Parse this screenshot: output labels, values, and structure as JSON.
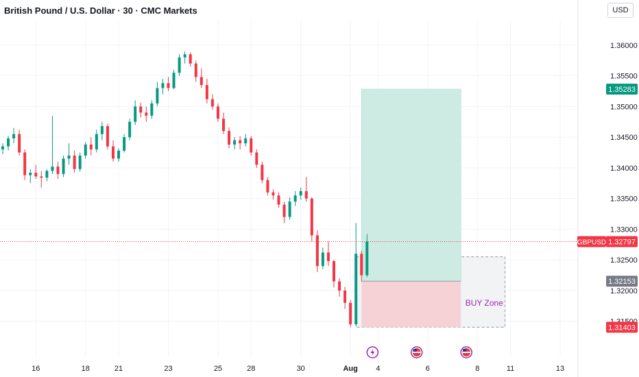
{
  "header": {
    "title": "British Pound / U.S. Dollar · 30 · CMC Markets",
    "currency_button": "USD"
  },
  "chart_data": {
    "type": "candlestick",
    "symbol": "GBPUSD",
    "ylim": [
      1.3115,
      1.364
    ],
    "y_ticks": [
      {
        "value": 1.36,
        "label": "1.36000"
      },
      {
        "value": 1.355,
        "label": "1.35500"
      },
      {
        "value": 1.35,
        "label": "1.35000"
      },
      {
        "value": 1.345,
        "label": "1.34500"
      },
      {
        "value": 1.34,
        "label": "1.34000"
      },
      {
        "value": 1.335,
        "label": "1.33500"
      },
      {
        "value": 1.33,
        "label": "1.33000"
      },
      {
        "value": 1.325,
        "label": "1.32500"
      },
      {
        "value": 1.32,
        "label": "1.32000"
      },
      {
        "value": 1.315,
        "label": "1.31500"
      }
    ],
    "x_ticks": [
      {
        "label": "16",
        "index": 6
      },
      {
        "label": "18",
        "index": 15
      },
      {
        "label": "21",
        "index": 21
      },
      {
        "label": "23",
        "index": 30
      },
      {
        "label": "25",
        "index": 39
      },
      {
        "label": "28",
        "index": 45
      },
      {
        "label": "30",
        "index": 54
      },
      {
        "label": "Aug",
        "index": 63,
        "bold": true
      },
      {
        "label": "4",
        "index": 68
      },
      {
        "label": "6",
        "index": 77
      },
      {
        "label": "8",
        "index": 86
      },
      {
        "label": "11",
        "index": 92
      },
      {
        "label": "13",
        "index": 101
      }
    ],
    "x_count": 113,
    "candles": [
      [
        1.343,
        1.344,
        1.3422,
        1.3435
      ],
      [
        1.3435,
        1.3452,
        1.3428,
        1.3448
      ],
      [
        1.3448,
        1.3465,
        1.344,
        1.3455
      ],
      [
        1.3455,
        1.3462,
        1.342,
        1.3425
      ],
      [
        1.3425,
        1.343,
        1.338,
        1.3388
      ],
      [
        1.3388,
        1.3398,
        1.3375,
        1.3392
      ],
      [
        1.3392,
        1.3405,
        1.3382,
        1.3386
      ],
      [
        1.3386,
        1.3395,
        1.3368,
        1.3384
      ],
      [
        1.3384,
        1.3398,
        1.3378,
        1.3395
      ],
      [
        1.3395,
        1.3485,
        1.339,
        1.3402
      ],
      [
        1.3402,
        1.341,
        1.3382,
        1.339
      ],
      [
        1.339,
        1.342,
        1.3385,
        1.3415
      ],
      [
        1.3415,
        1.344,
        1.3405,
        1.342
      ],
      [
        1.342,
        1.3428,
        1.3392,
        1.3398
      ],
      [
        1.3398,
        1.3425,
        1.3394,
        1.342
      ],
      [
        1.342,
        1.3442,
        1.3415,
        1.3438
      ],
      [
        1.3438,
        1.345,
        1.342,
        1.343
      ],
      [
        1.343,
        1.3462,
        1.3425,
        1.3455
      ],
      [
        1.3455,
        1.3475,
        1.3445,
        1.3468
      ],
      [
        1.3468,
        1.3472,
        1.343,
        1.3435
      ],
      [
        1.3435,
        1.3445,
        1.341,
        1.3415
      ],
      [
        1.3415,
        1.3432,
        1.341,
        1.3428
      ],
      [
        1.3428,
        1.3455,
        1.3425,
        1.345
      ],
      [
        1.345,
        1.348,
        1.3445,
        1.3475
      ],
      [
        1.3475,
        1.351,
        1.347,
        1.35
      ],
      [
        1.35,
        1.3506,
        1.3482,
        1.349
      ],
      [
        1.349,
        1.35,
        1.3475,
        1.3485
      ],
      [
        1.3485,
        1.351,
        1.348,
        1.3505
      ],
      [
        1.3505,
        1.354,
        1.35,
        1.353
      ],
      [
        1.353,
        1.3545,
        1.352,
        1.3538
      ],
      [
        1.3538,
        1.3548,
        1.3525,
        1.353
      ],
      [
        1.353,
        1.356,
        1.3528,
        1.3555
      ],
      [
        1.3555,
        1.3585,
        1.355,
        1.358
      ],
      [
        1.358,
        1.359,
        1.357,
        1.3585
      ],
      [
        1.3585,
        1.3588,
        1.3565,
        1.357
      ],
      [
        1.357,
        1.3575,
        1.354,
        1.3548
      ],
      [
        1.3548,
        1.3562,
        1.353,
        1.3535
      ],
      [
        1.3535,
        1.3545,
        1.3505,
        1.3512
      ],
      [
        1.3512,
        1.352,
        1.3495,
        1.35
      ],
      [
        1.35,
        1.3505,
        1.3475,
        1.348
      ],
      [
        1.348,
        1.349,
        1.3455,
        1.346
      ],
      [
        1.346,
        1.3466,
        1.3432,
        1.3438
      ],
      [
        1.3438,
        1.345,
        1.343,
        1.3445
      ],
      [
        1.3445,
        1.3452,
        1.343,
        1.344
      ],
      [
        1.344,
        1.3455,
        1.3435,
        1.3448
      ],
      [
        1.3448,
        1.3452,
        1.342,
        1.3425
      ],
      [
        1.3425,
        1.343,
        1.34,
        1.3405
      ],
      [
        1.3405,
        1.341,
        1.3375,
        1.338
      ],
      [
        1.338,
        1.3385,
        1.3355,
        1.336
      ],
      [
        1.336,
        1.3365,
        1.3348,
        1.3355
      ],
      [
        1.3355,
        1.336,
        1.3335,
        1.334
      ],
      [
        1.334,
        1.3345,
        1.331,
        1.332
      ],
      [
        1.332,
        1.3352,
        1.3315,
        1.3345
      ],
      [
        1.3345,
        1.3362,
        1.3338,
        1.3355
      ],
      [
        1.3355,
        1.3368,
        1.3348,
        1.3362
      ],
      [
        1.3362,
        1.3385,
        1.3345,
        1.335
      ],
      [
        1.335,
        1.3352,
        1.328,
        1.329
      ],
      [
        1.329,
        1.3298,
        1.323,
        1.324
      ],
      [
        1.324,
        1.327,
        1.3235,
        1.3262
      ],
      [
        1.3262,
        1.328,
        1.324,
        1.3248
      ],
      [
        1.3248,
        1.325,
        1.3205,
        1.3215
      ],
      [
        1.3215,
        1.322,
        1.319,
        1.32
      ],
      [
        1.32,
        1.3206,
        1.317,
        1.318
      ],
      [
        1.318,
        1.3185,
        1.314,
        1.3145
      ],
      [
        1.3145,
        1.331,
        1.3142,
        1.326
      ],
      [
        1.326,
        1.3265,
        1.3215,
        1.3225
      ],
      [
        1.3225,
        1.3292,
        1.3222,
        1.328
      ]
    ],
    "current_price": {
      "value": 1.32797,
      "symbol_label": "GBPUSD",
      "label": "1.32797"
    },
    "position": {
      "label": "BUY Zone",
      "entry": {
        "value": 1.32153,
        "label": "1.32153"
      },
      "target": {
        "value": 1.35283,
        "label": "1.35283"
      },
      "stop": {
        "value": 1.31403,
        "label": "1.31403"
      },
      "zone_top": 1.3255,
      "start_index": 65,
      "end_index": 83,
      "zone_start_index": 64,
      "zone_end_index": 91
    },
    "events": [
      {
        "icon": "lightning-icon",
        "index": 67
      },
      {
        "icon": "us-flag-icon",
        "index": 75
      },
      {
        "icon": "uk-flag-icon",
        "index": 84
      }
    ],
    "colors": {
      "up": "#089981",
      "down": "#f23645",
      "target_fill": "#cdebe3",
      "stop_fill": "#f6d2d6",
      "zone_fill": "#f2f3f5",
      "entry_tag": "#787b86",
      "zone_text": "#9c27b0"
    }
  }
}
